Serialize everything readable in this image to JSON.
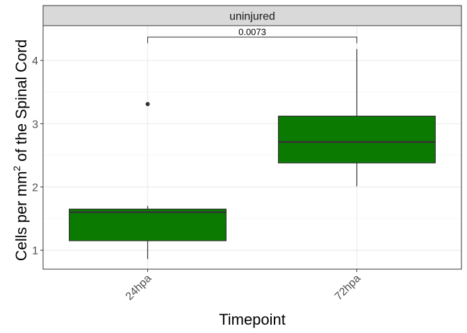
{
  "chart_data": {
    "type": "boxplot",
    "facet_label": "uninjured",
    "xlabel": "Timepoint",
    "ylabel": "Cells per mm",
    "ylabel_superscript": "2",
    "ylabel_suffix": " of the Spinal Cord",
    "ylim": [
      0.7,
      4.55
    ],
    "yticks": [
      1,
      2,
      3,
      4
    ],
    "ytick_labels": [
      "1",
      "2",
      "3",
      "4"
    ],
    "grid": true,
    "categories": [
      "24hpa",
      "72hpa"
    ],
    "boxes": [
      {
        "category": "24hpa",
        "whisker_low": 0.86,
        "q1": 1.15,
        "median": 1.6,
        "q3": 1.65,
        "whisker_high": 1.7,
        "outliers": [
          3.31
        ]
      },
      {
        "category": "72hpa",
        "whisker_low": 2.01,
        "q1": 2.38,
        "median": 2.71,
        "q3": 3.12,
        "whisker_high": 4.18,
        "outliers": []
      }
    ],
    "comparison": {
      "from": "24hpa",
      "to": "72hpa",
      "label": "0.0073",
      "y": 4.37
    },
    "colors": {
      "box_fill": "#0a7b00",
      "box_stroke": "#333333",
      "strip_fill": "#d9d9d9",
      "panel_border": "#333333",
      "grid": "#ebebeb"
    }
  }
}
